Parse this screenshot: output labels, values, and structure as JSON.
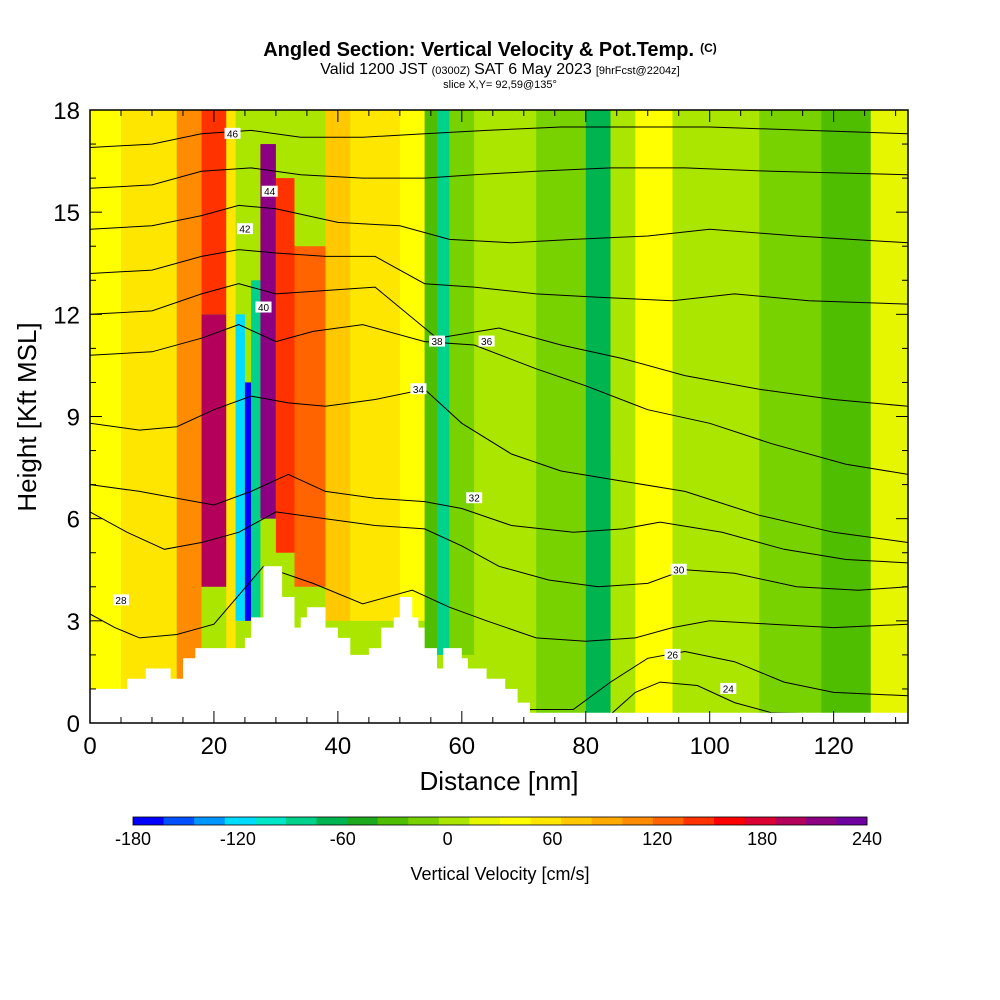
{
  "chart_data": {
    "type": "heatmap",
    "title": "Angled Section: Vertical Velocity & Pot.Temp.",
    "title_suffix": "(C)",
    "subtitle_prefix": "Valid 1200 JST",
    "subtitle_zulu": "(0300Z)",
    "subtitle_date": "SAT 6 May 2023",
    "subtitle_forecast": "[9hrFcst@2204z]",
    "slice_label": "slice X,Y= 92,59@135°",
    "xlabel": "Distance [nm]",
    "ylabel": "Height [Kft MSL]",
    "xlim": [
      0,
      132
    ],
    "ylim": [
      0,
      18
    ],
    "x_ticks": [
      0,
      20,
      40,
      60,
      80,
      100,
      120
    ],
    "y_ticks": [
      0,
      3,
      6,
      9,
      12,
      15,
      18
    ],
    "colorbar": {
      "label": "Vertical Velocity [cm/s]",
      "ticks": [
        -180,
        -120,
        -60,
        0,
        60,
        120,
        180,
        240
      ],
      "bounds": [
        -180,
        240
      ],
      "colors": [
        "#0000ff",
        "#0050ff",
        "#0096ff",
        "#00dcff",
        "#00e6c8",
        "#00d28c",
        "#00b450",
        "#1eaa1e",
        "#50be00",
        "#78d200",
        "#aae600",
        "#e6f500",
        "#ffff00",
        "#ffe600",
        "#ffc800",
        "#ffaa00",
        "#ff8c00",
        "#ff6400",
        "#ff3200",
        "#ff0000",
        "#dc0032",
        "#b4005a",
        "#8c0082",
        "#6e00a0"
      ]
    },
    "terrain": [
      [
        0,
        1.0
      ],
      [
        6,
        1.0
      ],
      [
        6,
        1.3
      ],
      [
        9,
        1.3
      ],
      [
        9,
        1.6
      ],
      [
        13,
        1.6
      ],
      [
        13,
        1.3
      ],
      [
        15,
        1.3
      ],
      [
        15,
        1.9
      ],
      [
        17,
        1.9
      ],
      [
        17,
        2.2
      ],
      [
        25,
        2.2
      ],
      [
        25,
        2.5
      ],
      [
        26,
        2.5
      ],
      [
        26,
        3.1
      ],
      [
        28,
        3.1
      ],
      [
        28,
        4.6
      ],
      [
        31,
        4.6
      ],
      [
        31,
        3.7
      ],
      [
        33,
        3.7
      ],
      [
        33,
        2.8
      ],
      [
        34,
        2.8
      ],
      [
        34,
        3.1
      ],
      [
        35,
        3.1
      ],
      [
        35,
        3.4
      ],
      [
        38,
        3.4
      ],
      [
        38,
        2.8
      ],
      [
        40,
        2.8
      ],
      [
        40,
        2.5
      ],
      [
        42,
        2.5
      ],
      [
        42,
        2.0
      ],
      [
        45,
        2.0
      ],
      [
        45,
        2.2
      ],
      [
        47,
        2.2
      ],
      [
        47,
        2.8
      ],
      [
        49,
        2.8
      ],
      [
        49,
        3.1
      ],
      [
        50,
        3.1
      ],
      [
        50,
        3.7
      ],
      [
        52,
        3.7
      ],
      [
        52,
        3.1
      ],
      [
        53,
        3.1
      ],
      [
        53,
        2.8
      ],
      [
        54,
        2.8
      ],
      [
        54,
        2.2
      ],
      [
        56,
        2.2
      ],
      [
        56,
        1.6
      ],
      [
        57,
        1.6
      ],
      [
        57,
        2.2
      ],
      [
        60,
        2.2
      ],
      [
        60,
        1.9
      ],
      [
        61,
        1.9
      ],
      [
        61,
        1.6
      ],
      [
        64,
        1.6
      ],
      [
        64,
        1.3
      ],
      [
        67,
        1.3
      ],
      [
        67,
        1.0
      ],
      [
        69,
        1.0
      ],
      [
        69,
        0.6
      ],
      [
        71,
        0.6
      ],
      [
        71,
        0.3
      ],
      [
        132,
        0.3
      ]
    ],
    "theta_contours": [
      {
        "label": "24",
        "shape": [
          [
            0,
            0.2
          ],
          [
            84,
            0.25
          ],
          [
            88,
            0.9
          ],
          [
            92,
            1.2
          ],
          [
            98,
            1.1
          ],
          [
            104,
            0.6
          ],
          [
            110,
            0.3
          ],
          [
            132,
            0.2
          ]
        ],
        "label_at": [
          103,
          1.0
        ]
      },
      {
        "label": "26",
        "shape": [
          [
            0,
            0.35
          ],
          [
            78,
            0.4
          ],
          [
            84,
            1.2
          ],
          [
            90,
            1.9
          ],
          [
            96,
            2.1
          ],
          [
            104,
            1.8
          ],
          [
            112,
            1.2
          ],
          [
            120,
            0.9
          ],
          [
            132,
            0.8
          ]
        ],
        "label_at": [
          94,
          2.0
        ]
      },
      {
        "label": "28",
        "shape": [
          [
            0,
            3.2
          ],
          [
            4,
            2.8
          ],
          [
            8,
            2.5
          ],
          [
            14,
            2.6
          ],
          [
            20,
            2.9
          ],
          [
            28,
            4.6
          ],
          [
            36,
            4.1
          ],
          [
            44,
            3.5
          ],
          [
            52,
            3.9
          ],
          [
            58,
            3.4
          ],
          [
            64,
            3.0
          ],
          [
            72,
            2.5
          ],
          [
            80,
            2.4
          ],
          [
            88,
            2.5
          ],
          [
            94,
            2.8
          ],
          [
            100,
            3.0
          ],
          [
            110,
            2.9
          ],
          [
            120,
            2.8
          ],
          [
            132,
            2.9
          ]
        ],
        "label_at": [
          5,
          3.6
        ]
      },
      {
        "label": "30",
        "shape": [
          [
            0,
            6.2
          ],
          [
            6,
            5.6
          ],
          [
            12,
            5.1
          ],
          [
            18,
            5.3
          ],
          [
            24,
            5.6
          ],
          [
            30,
            6.2
          ],
          [
            38,
            6.0
          ],
          [
            46,
            5.8
          ],
          [
            54,
            5.7
          ],
          [
            60,
            5.2
          ],
          [
            66,
            4.6
          ],
          [
            74,
            4.2
          ],
          [
            82,
            4.0
          ],
          [
            90,
            4.1
          ],
          [
            96,
            4.5
          ],
          [
            104,
            4.4
          ],
          [
            114,
            4.0
          ],
          [
            124,
            3.9
          ],
          [
            132,
            4.0
          ]
        ],
        "label_at": [
          95,
          4.5
        ]
      },
      {
        "label": "32",
        "shape": [
          [
            0,
            7.0
          ],
          [
            8,
            6.8
          ],
          [
            14,
            6.6
          ],
          [
            20,
            6.4
          ],
          [
            26,
            6.8
          ],
          [
            32,
            7.3
          ],
          [
            38,
            6.8
          ],
          [
            46,
            6.6
          ],
          [
            54,
            6.5
          ],
          [
            60,
            6.3
          ],
          [
            68,
            5.8
          ],
          [
            78,
            5.6
          ],
          [
            86,
            5.7
          ],
          [
            92,
            5.9
          ],
          [
            102,
            5.6
          ],
          [
            112,
            5.1
          ],
          [
            122,
            4.8
          ],
          [
            132,
            4.7
          ]
        ],
        "label_at": [
          62,
          6.6
        ]
      },
      {
        "label": "34",
        "shape": [
          [
            0,
            8.8
          ],
          [
            8,
            8.6
          ],
          [
            14,
            8.7
          ],
          [
            20,
            9.2
          ],
          [
            26,
            9.6
          ],
          [
            32,
            9.4
          ],
          [
            38,
            9.3
          ],
          [
            46,
            9.5
          ],
          [
            54,
            9.8
          ],
          [
            60,
            8.8
          ],
          [
            68,
            7.9
          ],
          [
            76,
            7.4
          ],
          [
            86,
            7.1
          ],
          [
            96,
            6.8
          ],
          [
            108,
            6.1
          ],
          [
            120,
            5.6
          ],
          [
            132,
            5.3
          ]
        ],
        "label_at": [
          53,
          9.8
        ]
      },
      {
        "label": "36",
        "shape": [
          [
            0,
            10.8
          ],
          [
            10,
            10.9
          ],
          [
            18,
            11.3
          ],
          [
            24,
            11.7
          ],
          [
            30,
            11.2
          ],
          [
            36,
            11.5
          ],
          [
            44,
            11.7
          ],
          [
            54,
            11.2
          ],
          [
            62,
            11.1
          ],
          [
            72,
            10.4
          ],
          [
            80,
            9.9
          ],
          [
            90,
            9.2
          ],
          [
            100,
            8.8
          ],
          [
            110,
            8.2
          ],
          [
            122,
            7.6
          ],
          [
            132,
            7.3
          ]
        ],
        "label_at": [
          64,
          11.2
        ]
      },
      {
        "label": "38",
        "shape": [
          [
            0,
            12.0
          ],
          [
            10,
            12.1
          ],
          [
            18,
            12.6
          ],
          [
            24,
            12.9
          ],
          [
            30,
            12.6
          ],
          [
            38,
            12.7
          ],
          [
            46,
            12.8
          ],
          [
            56,
            11.3
          ],
          [
            66,
            11.6
          ],
          [
            76,
            11.1
          ],
          [
            86,
            10.7
          ],
          [
            96,
            10.2
          ],
          [
            108,
            9.8
          ],
          [
            120,
            9.5
          ],
          [
            132,
            9.3
          ]
        ],
        "label_at": [
          56,
          11.2
        ]
      },
      {
        "label": "40",
        "shape": [
          [
            0,
            13.2
          ],
          [
            10,
            13.3
          ],
          [
            18,
            13.7
          ],
          [
            24,
            13.9
          ],
          [
            30,
            13.8
          ],
          [
            38,
            13.7
          ],
          [
            46,
            13.7
          ],
          [
            54,
            12.9
          ],
          [
            62,
            12.8
          ],
          [
            72,
            12.6
          ],
          [
            82,
            12.5
          ],
          [
            94,
            12.4
          ],
          [
            104,
            12.6
          ],
          [
            116,
            12.4
          ],
          [
            132,
            12.3
          ]
        ],
        "label_at": [
          28,
          12.2
        ]
      },
      {
        "label": "42",
        "shape": [
          [
            0,
            14.5
          ],
          [
            10,
            14.6
          ],
          [
            18,
            14.9
          ],
          [
            24,
            15.2
          ],
          [
            30,
            15.1
          ],
          [
            40,
            14.7
          ],
          [
            50,
            14.6
          ],
          [
            58,
            14.2
          ],
          [
            68,
            14.1
          ],
          [
            78,
            14.2
          ],
          [
            90,
            14.3
          ],
          [
            100,
            14.5
          ],
          [
            114,
            14.3
          ],
          [
            132,
            14.1
          ]
        ],
        "label_at": [
          25,
          14.5
        ]
      },
      {
        "label": "44",
        "shape": [
          [
            0,
            15.7
          ],
          [
            10,
            15.8
          ],
          [
            18,
            16.2
          ],
          [
            26,
            16.3
          ],
          [
            34,
            16.1
          ],
          [
            44,
            16.0
          ],
          [
            54,
            16.0
          ],
          [
            62,
            16.1
          ],
          [
            72,
            16.2
          ],
          [
            84,
            16.3
          ],
          [
            96,
            16.3
          ],
          [
            110,
            16.2
          ],
          [
            132,
            16.1
          ]
        ],
        "label_at": [
          29,
          15.6
        ]
      },
      {
        "label": "46",
        "shape": [
          [
            0,
            16.9
          ],
          [
            10,
            17.0
          ],
          [
            18,
            17.3
          ],
          [
            26,
            17.4
          ],
          [
            34,
            17.2
          ],
          [
            44,
            17.2
          ],
          [
            54,
            17.3
          ],
          [
            64,
            17.4
          ],
          [
            76,
            17.5
          ],
          [
            88,
            17.5
          ],
          [
            100,
            17.5
          ],
          [
            116,
            17.4
          ],
          [
            132,
            17.3
          ]
        ],
        "label_at": [
          23,
          17.3
        ]
      }
    ],
    "w_cells": [
      {
        "x": [
          0,
          5
        ],
        "y": [
          0,
          18
        ],
        "w": 30
      },
      {
        "x": [
          5,
          14
        ],
        "y": [
          0,
          18
        ],
        "w": 55
      },
      {
        "x": [
          14,
          18
        ],
        "y": [
          0,
          18
        ],
        "w": 110
      },
      {
        "x": [
          18,
          22
        ],
        "y": [
          4,
          12
        ],
        "w": 190
      },
      {
        "x": [
          18,
          22
        ],
        "y": [
          12,
          18
        ],
        "w": 140
      },
      {
        "x": [
          22,
          23.5
        ],
        "y": [
          0,
          18
        ],
        "w": 60
      },
      {
        "x": [
          23.5,
          25
        ],
        "y": [
          3,
          12
        ],
        "w": -120
      },
      {
        "x": [
          25,
          26
        ],
        "y": [
          3,
          10
        ],
        "w": -170
      },
      {
        "x": [
          26,
          27.5
        ],
        "y": [
          3,
          13
        ],
        "w": -80
      },
      {
        "x": [
          27.5,
          30
        ],
        "y": [
          6,
          17
        ],
        "w": 210
      },
      {
        "x": [
          30,
          33
        ],
        "y": [
          5,
          16
        ],
        "w": 150
      },
      {
        "x": [
          33,
          38
        ],
        "y": [
          4,
          14
        ],
        "w": 130
      },
      {
        "x": [
          38,
          42
        ],
        "y": [
          3,
          18
        ],
        "w": 80
      },
      {
        "x": [
          42,
          50
        ],
        "y": [
          3,
          18
        ],
        "w": 55
      },
      {
        "x": [
          50,
          54
        ],
        "y": [
          3,
          18
        ],
        "w": 30
      },
      {
        "x": [
          54,
          56
        ],
        "y": [
          2,
          18
        ],
        "w": -40
      },
      {
        "x": [
          56,
          58
        ],
        "y": [
          2,
          18
        ],
        "w": -90
      },
      {
        "x": [
          58,
          62
        ],
        "y": [
          2,
          18
        ],
        "w": -20
      },
      {
        "x": [
          62,
          72
        ],
        "y": [
          0,
          18
        ],
        "w": 10
      },
      {
        "x": [
          72,
          80
        ],
        "y": [
          0,
          18
        ],
        "w": -15
      },
      {
        "x": [
          80,
          84
        ],
        "y": [
          0,
          18
        ],
        "w": -60
      },
      {
        "x": [
          84,
          88
        ],
        "y": [
          8,
          18
        ],
        "w": 5
      },
      {
        "x": [
          88,
          94
        ],
        "y": [
          0,
          18
        ],
        "w": 40
      },
      {
        "x": [
          94,
          108
        ],
        "y": [
          0,
          18
        ],
        "w": 5
      },
      {
        "x": [
          108,
          118
        ],
        "y": [
          0,
          18
        ],
        "w": -20
      },
      {
        "x": [
          118,
          126
        ],
        "y": [
          0,
          18
        ],
        "w": -40
      },
      {
        "x": [
          126,
          132
        ],
        "y": [
          0,
          18
        ],
        "w": 20
      }
    ]
  }
}
